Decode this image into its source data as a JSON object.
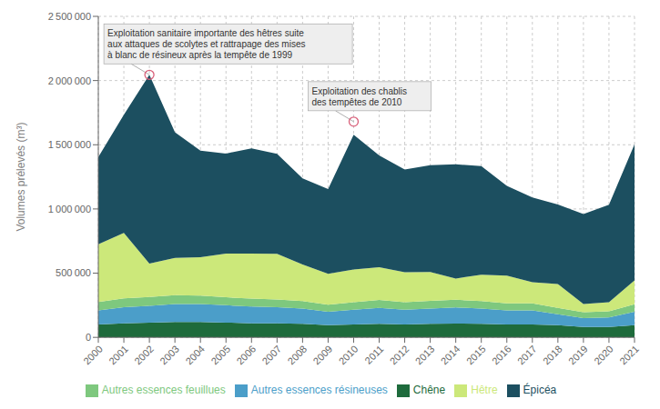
{
  "chart_data": {
    "type": "area",
    "stacked": true,
    "x": [
      2000,
      2001,
      2002,
      2003,
      2004,
      2005,
      2006,
      2007,
      2008,
      2009,
      2010,
      2011,
      2012,
      2013,
      2014,
      2015,
      2016,
      2017,
      2018,
      2019,
      2020,
      2021
    ],
    "xlim": [
      2000,
      2021
    ],
    "xticks": [
      2000,
      2001,
      2002,
      2003,
      2004,
      2005,
      2006,
      2007,
      2008,
      2009,
      2010,
      2011,
      2012,
      2013,
      2014,
      2015,
      2016,
      2017,
      2018,
      2019,
      2020,
      2021
    ],
    "ylim": [
      0,
      2500000
    ],
    "yticks": [
      0,
      {
        "value": 500000,
        "label": "500 000"
      },
      {
        "value": 1000000,
        "label": "1 000 000"
      },
      {
        "value": 1500000,
        "label": "1 500 000"
      },
      {
        "value": 2000000,
        "label": "2 000 000"
      },
      {
        "value": 2500000,
        "label": "2 500 000"
      }
    ],
    "ylabel": "Volumes prélevés (m³)",
    "grid": true,
    "legend": "bottom",
    "series": [
      {
        "name": "Chêne",
        "color": "#1e6b3c",
        "values": [
          100000,
          110000,
          115000,
          120000,
          120000,
          115000,
          110000,
          110000,
          105000,
          95000,
          100000,
          105000,
          100000,
          105000,
          108000,
          105000,
          100000,
          100000,
          95000,
          80000,
          80000,
          95000
        ]
      },
      {
        "name": "Autres essences résineuses",
        "color": "#4b9ec9",
        "values": [
          110000,
          125000,
          130000,
          140000,
          140000,
          135000,
          130000,
          125000,
          120000,
          105000,
          115000,
          125000,
          115000,
          120000,
          125000,
          120000,
          110000,
          110000,
          85000,
          70000,
          75000,
          105000
        ]
      },
      {
        "name": "Autres essences feuillues",
        "color": "#7ec87e",
        "values": [
          65000,
          68000,
          70000,
          68000,
          65000,
          62000,
          62000,
          60000,
          58000,
          55000,
          58000,
          62000,
          58000,
          60000,
          60000,
          58000,
          55000,
          55000,
          50000,
          45000,
          48000,
          58000
        ]
      },
      {
        "name": "Hêtre",
        "color": "#cce87a",
        "values": [
          450000,
          510000,
          260000,
          290000,
          300000,
          340000,
          350000,
          355000,
          285000,
          240000,
          255000,
          255000,
          235000,
          225000,
          165000,
          205000,
          215000,
          165000,
          185000,
          65000,
          70000,
          185000
        ]
      },
      {
        "name": "Épicéa",
        "color": "#1c4f60",
        "values": [
          680000,
          920000,
          1470000,
          980000,
          830000,
          780000,
          820000,
          780000,
          670000,
          660000,
          1050000,
          870000,
          800000,
          830000,
          890000,
          845000,
          700000,
          660000,
          620000,
          700000,
          760000,
          1060000
        ]
      }
    ],
    "annotations": [
      {
        "text": "Exploitation sanitaire importante des hêtres suite\naux attaques de scolytes et rattrapage des mises\nà blanc de résineux après la tempête de 1999",
        "x": 2002,
        "y": 2045000
      },
      {
        "text": "Exploitation des chablis\ndes tempêtes de 2010",
        "x": 2010,
        "y": 1680000
      }
    ]
  }
}
